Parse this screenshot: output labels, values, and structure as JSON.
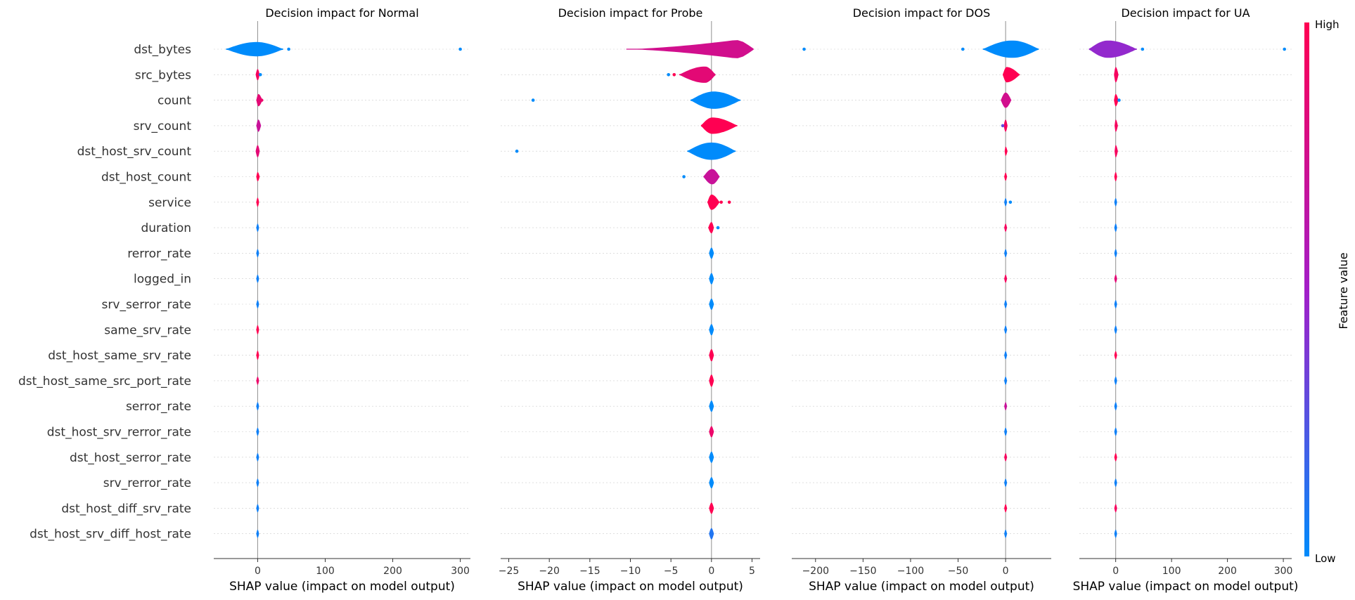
{
  "chart_data": {
    "type": "violin",
    "features": [
      "dst_bytes",
      "src_bytes",
      "count",
      "srv_count",
      "dst_host_srv_count",
      "dst_host_count",
      "service",
      "duration",
      "rerror_rate",
      "logged_in",
      "srv_serror_rate",
      "same_srv_rate",
      "dst_host_same_srv_rate",
      "dst_host_same_src_port_rate",
      "serror_rate",
      "dst_host_srv_rerror_rate",
      "dst_host_serror_rate",
      "srv_rerror_rate",
      "dst_host_diff_srv_rate",
      "dst_host_srv_diff_host_rate"
    ],
    "colorbar": {
      "label": "Feature value",
      "high_label": "High",
      "low_label": "Low",
      "low_color": "#008bfb",
      "high_color": "#ff0052"
    },
    "grid": true,
    "panels": [
      {
        "title": "Decision impact for Normal",
        "xlabel": "SHAP value (impact on model output)",
        "xlim": [
          -65,
          315
        ],
        "ticks": [
          0,
          100,
          200,
          300
        ],
        "tick_labels": [
          "0",
          "100",
          "200",
          "300"
        ],
        "violins": [
          {
            "feature": "dst_bytes",
            "min": -47,
            "max": 38,
            "center": -2,
            "width": 0.28,
            "color": 0.0
          },
          {
            "feature": "src_bytes",
            "min": -3,
            "max": 3,
            "center": 0,
            "width": 0.22,
            "color": 0.95
          },
          {
            "feature": "count",
            "min": -2,
            "max": 7,
            "center": 1,
            "width": 0.24,
            "color": 0.85
          },
          {
            "feature": "srv_count",
            "min": -2,
            "max": 5,
            "center": 1,
            "width": 0.24,
            "color": 0.7
          },
          {
            "feature": "dst_host_srv_count",
            "min": -3,
            "max": 3,
            "center": 0,
            "width": 0.24,
            "color": 0.85
          },
          {
            "feature": "dst_host_count",
            "min": -2,
            "max": 3,
            "center": 0,
            "width": 0.18,
            "color": 1.0
          },
          {
            "feature": "service",
            "min": -1,
            "max": 2,
            "center": 0,
            "width": 0.18,
            "color": 1.0
          },
          {
            "feature": "duration",
            "min": -1,
            "max": 1,
            "center": 0,
            "width": 0.16,
            "color": 0.05
          },
          {
            "feature": "rerror_rate",
            "min": -1,
            "max": 1,
            "center": 0,
            "width": 0.16,
            "color": 0.05
          },
          {
            "feature": "logged_in",
            "min": -1,
            "max": 1,
            "center": 0,
            "width": 0.16,
            "color": 0.05
          },
          {
            "feature": "srv_serror_rate",
            "min": -1,
            "max": 1,
            "center": 0,
            "width": 0.16,
            "color": 0.05
          },
          {
            "feature": "same_srv_rate",
            "min": -1,
            "max": 2,
            "center": 0,
            "width": 0.18,
            "color": 1.0
          },
          {
            "feature": "dst_host_same_srv_rate",
            "min": -1,
            "max": 2,
            "center": 0,
            "width": 0.18,
            "color": 1.0
          },
          {
            "feature": "dst_host_same_src_port_rate",
            "min": -1,
            "max": 1,
            "center": 0,
            "width": 0.16,
            "color": 0.9
          },
          {
            "feature": "serror_rate",
            "min": -1,
            "max": 1,
            "center": 0,
            "width": 0.16,
            "color": 0.05
          },
          {
            "feature": "dst_host_srv_rerror_rate",
            "min": -1,
            "max": 1,
            "center": 0,
            "width": 0.16,
            "color": 0.05
          },
          {
            "feature": "dst_host_serror_rate",
            "min": -1,
            "max": 1,
            "center": 0,
            "width": 0.16,
            "color": 0.05
          },
          {
            "feature": "srv_rerror_rate",
            "min": -1,
            "max": 1,
            "center": 0,
            "width": 0.16,
            "color": 0.05
          },
          {
            "feature": "dst_host_diff_srv_rate",
            "min": -1,
            "max": 1,
            "center": 0,
            "width": 0.16,
            "color": 0.05
          },
          {
            "feature": "dst_host_srv_diff_host_rate",
            "min": -1,
            "max": 1,
            "center": 0,
            "width": 0.16,
            "color": 0.05
          }
        ],
        "outliers": [
          {
            "feature": "dst_bytes",
            "x": 46,
            "color": 0.0
          },
          {
            "feature": "dst_bytes",
            "x": 300,
            "color": 0.0
          },
          {
            "feature": "src_bytes",
            "x": 4,
            "color": 0.0
          },
          {
            "feature": "count",
            "x": 6,
            "color": 0.9
          }
        ]
      },
      {
        "title": "Decision impact for Probe",
        "xlabel": "SHAP value (impact on model output)",
        "xlim": [
          -26,
          6
        ],
        "ticks": [
          -25,
          -20,
          -15,
          -10,
          -5,
          0,
          5
        ],
        "tick_labels": [
          "−25",
          "−20",
          "−15",
          "−10",
          "−5",
          "0",
          "5"
        ],
        "violins": [
          {
            "feature": "dst_bytes",
            "min": -10.5,
            "max": 5.2,
            "center": 3,
            "width": 0.36,
            "color": 0.75,
            "taper": "left"
          },
          {
            "feature": "src_bytes",
            "min": -4,
            "max": 0.5,
            "center": -0.8,
            "width": 0.32,
            "color": 0.85
          },
          {
            "feature": "count",
            "min": -2.6,
            "max": 3.6,
            "center": 0.3,
            "width": 0.34,
            "color": 0.0
          },
          {
            "feature": "srv_count",
            "min": -1.3,
            "max": 3.2,
            "center": 0.1,
            "width": 0.32,
            "color": 1.0
          },
          {
            "feature": "dst_host_srv_count",
            "min": -3,
            "max": 3,
            "center": 0,
            "width": 0.34,
            "color": 0.0
          },
          {
            "feature": "dst_host_count",
            "min": -1,
            "max": 1,
            "center": 0.1,
            "width": 0.3,
            "color": 0.7
          },
          {
            "feature": "service",
            "min": -0.5,
            "max": 1,
            "center": 0,
            "width": 0.3,
            "color": 1.0
          },
          {
            "feature": "duration",
            "min": -0.4,
            "max": 0.3,
            "center": 0,
            "width": 0.22,
            "color": 1.0
          },
          {
            "feature": "rerror_rate",
            "min": -0.3,
            "max": 0.3,
            "center": 0,
            "width": 0.22,
            "color": 0.0
          },
          {
            "feature": "logged_in",
            "min": -0.3,
            "max": 0.3,
            "center": 0,
            "width": 0.22,
            "color": 0.0
          },
          {
            "feature": "srv_serror_rate",
            "min": -0.3,
            "max": 0.3,
            "center": 0,
            "width": 0.22,
            "color": 0.0
          },
          {
            "feature": "same_srv_rate",
            "min": -0.3,
            "max": 0.3,
            "center": 0,
            "width": 0.22,
            "color": 0.0
          },
          {
            "feature": "dst_host_same_srv_rate",
            "min": -0.3,
            "max": 0.3,
            "center": 0,
            "width": 0.24,
            "color": 1.0
          },
          {
            "feature": "dst_host_same_src_port_rate",
            "min": -0.3,
            "max": 0.3,
            "center": 0,
            "width": 0.24,
            "color": 1.0
          },
          {
            "feature": "serror_rate",
            "min": -0.3,
            "max": 0.3,
            "center": 0,
            "width": 0.22,
            "color": 0.0
          },
          {
            "feature": "dst_host_srv_rerror_rate",
            "min": -0.3,
            "max": 0.3,
            "center": 0,
            "width": 0.22,
            "color": 0.9
          },
          {
            "feature": "dst_host_serror_rate",
            "min": -0.3,
            "max": 0.3,
            "center": 0,
            "width": 0.22,
            "color": 0.0
          },
          {
            "feature": "srv_rerror_rate",
            "min": -0.3,
            "max": 0.3,
            "center": 0,
            "width": 0.22,
            "color": 0.0
          },
          {
            "feature": "dst_host_diff_srv_rate",
            "min": -0.3,
            "max": 0.3,
            "center": 0,
            "width": 0.22,
            "color": 1.0
          },
          {
            "feature": "dst_host_srv_diff_host_rate",
            "min": -0.3,
            "max": 0.3,
            "center": 0,
            "width": 0.22,
            "color": 0.1
          }
        ],
        "outliers": [
          {
            "feature": "src_bytes",
            "x": -5.3,
            "color": 0.0
          },
          {
            "feature": "src_bytes",
            "x": -4.6,
            "color": 1.0
          },
          {
            "feature": "count",
            "x": -22,
            "color": 0.0
          },
          {
            "feature": "dst_host_srv_count",
            "x": -24,
            "color": 0.0
          },
          {
            "feature": "dst_host_count",
            "x": -3.4,
            "color": 0.0
          },
          {
            "feature": "service",
            "x": 1.2,
            "color": 1.0
          },
          {
            "feature": "service",
            "x": 2.2,
            "color": 1.0
          },
          {
            "feature": "duration",
            "x": 0.8,
            "color": 0.0
          }
        ]
      },
      {
        "title": "Decision impact for DOS",
        "xlabel": "SHAP value (impact on model output)",
        "xlim": [
          -225,
          48
        ],
        "ticks": [
          -200,
          -150,
          -100,
          -50,
          0
        ],
        "tick_labels": [
          "−200",
          "−150",
          "−100",
          "−50",
          "0"
        ],
        "violins": [
          {
            "feature": "dst_bytes",
            "min": -24,
            "max": 35,
            "center": 7,
            "width": 0.34,
            "color": 0.0
          },
          {
            "feature": "src_bytes",
            "min": -3,
            "max": 15,
            "center": 1,
            "width": 0.3,
            "color": 1.0
          },
          {
            "feature": "count",
            "min": -5,
            "max": 6,
            "center": 0,
            "width": 0.3,
            "color": 0.75
          },
          {
            "feature": "srv_count",
            "min": -2,
            "max": 2,
            "center": 0,
            "width": 0.24,
            "color": 0.95
          },
          {
            "feature": "dst_host_srv_count",
            "min": -1,
            "max": 2,
            "center": 0,
            "width": 0.18,
            "color": 1.0
          },
          {
            "feature": "dst_host_count",
            "min": -1,
            "max": 1,
            "center": 0,
            "width": 0.16,
            "color": 1.0
          },
          {
            "feature": "service",
            "min": -1,
            "max": 1,
            "center": 0,
            "width": 0.16,
            "color": 0.05
          },
          {
            "feature": "duration",
            "min": -1,
            "max": 1,
            "center": 0,
            "width": 0.16,
            "color": 0.95
          },
          {
            "feature": "rerror_rate",
            "min": -1,
            "max": 1,
            "center": 0,
            "width": 0.16,
            "color": 0.05
          },
          {
            "feature": "logged_in",
            "min": -1,
            "max": 1,
            "center": 0,
            "width": 0.16,
            "color": 0.95
          },
          {
            "feature": "srv_serror_rate",
            "min": -1,
            "max": 1,
            "center": 0,
            "width": 0.16,
            "color": 0.05
          },
          {
            "feature": "same_srv_rate",
            "min": -1,
            "max": 1,
            "center": 0,
            "width": 0.16,
            "color": 0.05
          },
          {
            "feature": "dst_host_same_srv_rate",
            "min": -1,
            "max": 1,
            "center": 0,
            "width": 0.16,
            "color": 0.05
          },
          {
            "feature": "dst_host_same_src_port_rate",
            "min": -1,
            "max": 1,
            "center": 0,
            "width": 0.16,
            "color": 0.05
          },
          {
            "feature": "serror_rate",
            "min": -1,
            "max": 1,
            "center": 0,
            "width": 0.16,
            "color": 0.7
          },
          {
            "feature": "dst_host_srv_rerror_rate",
            "min": -1,
            "max": 1,
            "center": 0,
            "width": 0.16,
            "color": 0.05
          },
          {
            "feature": "dst_host_serror_rate",
            "min": -1,
            "max": 1,
            "center": 0,
            "width": 0.16,
            "color": 0.95
          },
          {
            "feature": "srv_rerror_rate",
            "min": -1,
            "max": 1,
            "center": 0,
            "width": 0.16,
            "color": 0.05
          },
          {
            "feature": "dst_host_diff_srv_rate",
            "min": -1,
            "max": 1,
            "center": 0,
            "width": 0.16,
            "color": 1.0
          },
          {
            "feature": "dst_host_srv_diff_host_rate",
            "min": -1,
            "max": 1,
            "center": 0,
            "width": 0.16,
            "color": 0.05
          }
        ],
        "outliers": [
          {
            "feature": "dst_bytes",
            "x": -212,
            "color": 0.0
          },
          {
            "feature": "dst_bytes",
            "x": -45,
            "color": 0.0
          },
          {
            "feature": "srv_count",
            "x": -3,
            "color": 0.3
          },
          {
            "feature": "service",
            "x": 5,
            "color": 0.0
          }
        ]
      },
      {
        "title": "Decision impact for UA",
        "xlabel": "SHAP value (impact on model output)",
        "xlim": [
          -65,
          315
        ],
        "ticks": [
          0,
          100,
          200,
          300
        ],
        "tick_labels": [
          "0",
          "100",
          "200",
          "300"
        ],
        "violins": [
          {
            "feature": "dst_bytes",
            "min": -48,
            "max": 38,
            "center": -14,
            "width": 0.34,
            "color": 0.45
          },
          {
            "feature": "src_bytes",
            "min": -3,
            "max": 5,
            "center": 0,
            "width": 0.3,
            "color": 0.95
          },
          {
            "feature": "count",
            "min": -3,
            "max": 5,
            "center": 0,
            "width": 0.24,
            "color": 1.0
          },
          {
            "feature": "srv_count",
            "min": -2,
            "max": 4,
            "center": 0,
            "width": 0.24,
            "color": 0.95
          },
          {
            "feature": "dst_host_srv_count",
            "min": -2,
            "max": 4,
            "center": 0,
            "width": 0.24,
            "color": 0.95
          },
          {
            "feature": "dst_host_count",
            "min": -1,
            "max": 2,
            "center": 0,
            "width": 0.18,
            "color": 1.0
          },
          {
            "feature": "service",
            "min": -1,
            "max": 1,
            "center": 0,
            "width": 0.16,
            "color": 0.05
          },
          {
            "feature": "duration",
            "min": -1,
            "max": 1,
            "center": 0,
            "width": 0.16,
            "color": 0.05
          },
          {
            "feature": "rerror_rate",
            "min": -1,
            "max": 1,
            "center": 0,
            "width": 0.16,
            "color": 0.05
          },
          {
            "feature": "logged_in",
            "min": -1,
            "max": 1,
            "center": 0,
            "width": 0.16,
            "color": 0.85
          },
          {
            "feature": "srv_serror_rate",
            "min": -1,
            "max": 1,
            "center": 0,
            "width": 0.16,
            "color": 0.05
          },
          {
            "feature": "same_srv_rate",
            "min": -1,
            "max": 1,
            "center": 0,
            "width": 0.16,
            "color": 0.05
          },
          {
            "feature": "dst_host_same_srv_rate",
            "min": -1,
            "max": 1,
            "center": 0,
            "width": 0.16,
            "color": 1.0
          },
          {
            "feature": "dst_host_same_src_port_rate",
            "min": -1,
            "max": 1,
            "center": 0,
            "width": 0.16,
            "color": 0.05
          },
          {
            "feature": "serror_rate",
            "min": -1,
            "max": 1,
            "center": 0,
            "width": 0.16,
            "color": 0.05
          },
          {
            "feature": "dst_host_srv_rerror_rate",
            "min": -1,
            "max": 1,
            "center": 0,
            "width": 0.16,
            "color": 0.05
          },
          {
            "feature": "dst_host_serror_rate",
            "min": -1,
            "max": 1,
            "center": 0,
            "width": 0.16,
            "color": 1.0
          },
          {
            "feature": "srv_rerror_rate",
            "min": -1,
            "max": 1,
            "center": 0,
            "width": 0.16,
            "color": 0.05
          },
          {
            "feature": "dst_host_diff_srv_rate",
            "min": -1,
            "max": 1,
            "center": 0,
            "width": 0.16,
            "color": 0.95
          },
          {
            "feature": "dst_host_srv_diff_host_rate",
            "min": -1,
            "max": 1,
            "center": 0,
            "width": 0.16,
            "color": 0.05
          }
        ],
        "outliers": [
          {
            "feature": "dst_bytes",
            "x": 48,
            "color": 0.0
          },
          {
            "feature": "dst_bytes",
            "x": 302,
            "color": 0.0
          },
          {
            "feature": "count",
            "x": 6,
            "color": 0.0
          }
        ]
      }
    ]
  }
}
